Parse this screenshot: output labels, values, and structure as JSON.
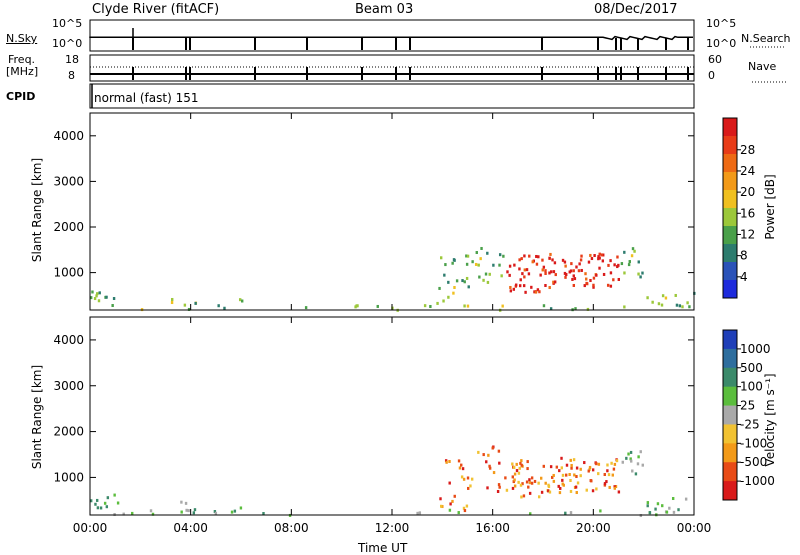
{
  "header": {
    "station": "Clyde River (fitACF)",
    "beam": "Beam 03",
    "date": "08/Dec/2017"
  },
  "status_panels": {
    "nsky_label": "N.Sky",
    "nsearch_label": "N.Search",
    "nsky_ticks": [
      "10^5",
      "10^0"
    ],
    "nsearch_ticks": [
      "10^5",
      "10^0"
    ],
    "freq_label_line1": "Freq.",
    "freq_label_line2": "[MHz]",
    "freq_ticks": [
      "18",
      "8"
    ],
    "nave_label": "Nave",
    "nave_ticks": [
      "60",
      "0"
    ],
    "cpid_label": "CPID",
    "cpid_value": "normal (fast) 151"
  },
  "chart_data": [
    {
      "type": "heatmap",
      "panel": "power",
      "ylabel": "Slant Range [km]",
      "xlabel": "",
      "y_ticks": [
        "1000",
        "2000",
        "3000",
        "4000"
      ],
      "ylim": [
        180,
        4500
      ],
      "x_ticks": [
        "00:00",
        "04:00",
        "08:00",
        "12:00",
        "16:00",
        "20:00",
        "00:00"
      ],
      "colorbar": {
        "label": "Power [dB]",
        "ticks": [
          "4",
          "8",
          "12",
          "16",
          "20",
          "24",
          "28"
        ],
        "colors": [
          "#1e2bdc",
          "#2a52b8",
          "#2d7c6e",
          "#4aa04a",
          "#9cc83a",
          "#f0c020",
          "#f39a18",
          "#ee6a14",
          "#e83c18",
          "#d91a1a"
        ]
      }
    },
    {
      "type": "heatmap",
      "panel": "velocity",
      "ylabel": "Slant Range [km]",
      "xlabel": "Time UT",
      "y_ticks": [
        "1000",
        "2000",
        "3000",
        "4000"
      ],
      "ylim": [
        180,
        4500
      ],
      "x_ticks": [
        "00:00",
        "04:00",
        "08:00",
        "12:00",
        "16:00",
        "20:00",
        "00:00"
      ],
      "colorbar": {
        "label": "Velocity [m s⁻¹]",
        "ticks": [
          "1000",
          "500",
          "100",
          "25",
          "-25",
          "-100",
          "-500",
          "-1000"
        ],
        "colors": [
          "#1f3fb8",
          "#2e6e9e",
          "#3b8a6a",
          "#5bbd3d",
          "#a9a9a9",
          "#f1c232",
          "#f39a18",
          "#e84b16",
          "#d91a1a"
        ]
      }
    }
  ]
}
